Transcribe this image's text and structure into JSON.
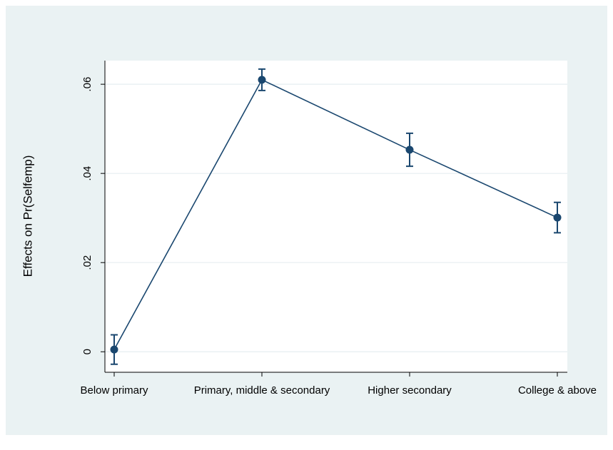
{
  "chart_data": {
    "type": "line",
    "y_label": "Effects on Pr(Selfemp)",
    "categories": [
      "Below primary",
      "Primary, middle & secondary",
      "Higher secondary",
      "College & above"
    ],
    "series": [
      {
        "color": "#1a476f",
        "values": [
          0.0005,
          0.061,
          0.0453,
          0.0301
        ],
        "errors": [
          0.0033,
          0.0024,
          0.0037,
          0.0034
        ]
      }
    ],
    "ylim": [
      -0.0046,
      0.0653
    ],
    "yticks": [
      0,
      {
        "value": 0.02,
        "label": ".02"
      },
      {
        "value": 0.04,
        "label": ".04"
      },
      {
        "value": 0.06,
        "label": ".06"
      }
    ],
    "grid": true
  }
}
